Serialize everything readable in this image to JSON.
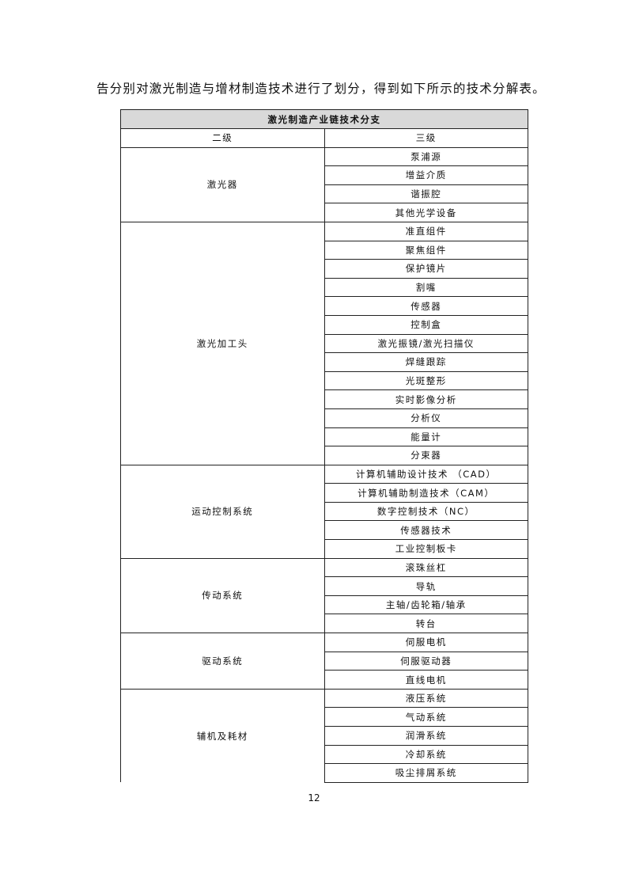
{
  "intro_text": "告分别对激光制造与增材制造技术进行了划分，得到如下所示的技术分解表。",
  "table": {
    "title": "激光制造产业链技术分支",
    "headers": [
      "二级",
      "三级"
    ],
    "groups": [
      {
        "name": "激光器",
        "items": [
          "泵浦源",
          "增益介质",
          "谐振腔",
          "其他光学设备"
        ]
      },
      {
        "name": "激光加工头",
        "items": [
          "准直组件",
          "聚焦组件",
          "保护镜片",
          "割嘴",
          "传感器",
          "控制盒",
          "激光振镜/激光扫描仪",
          "焊缝跟踪",
          "光斑整形",
          "实时影像分析",
          "分析仪",
          "能量计",
          "分束器"
        ]
      },
      {
        "name": "运动控制系统",
        "items": [
          "计算机辅助设计技术 （CAD）",
          "计算机辅助制造技术（CAM）",
          "数字控制技术（NC）",
          "传感器技术",
          "工业控制板卡"
        ]
      },
      {
        "name": "传动系统",
        "items": [
          "滚珠丝杠",
          "导轨",
          "主轴/齿轮箱/轴承",
          "转台"
        ]
      },
      {
        "name": "驱动系统",
        "items": [
          "伺服电机",
          "伺服驱动器",
          "直线电机"
        ]
      },
      {
        "name": "辅机及耗材",
        "items": [
          "液压系统",
          "气动系统",
          "润滑系统",
          "冷却系统",
          "吸尘排屑系统"
        ]
      }
    ]
  },
  "page_number": "12"
}
